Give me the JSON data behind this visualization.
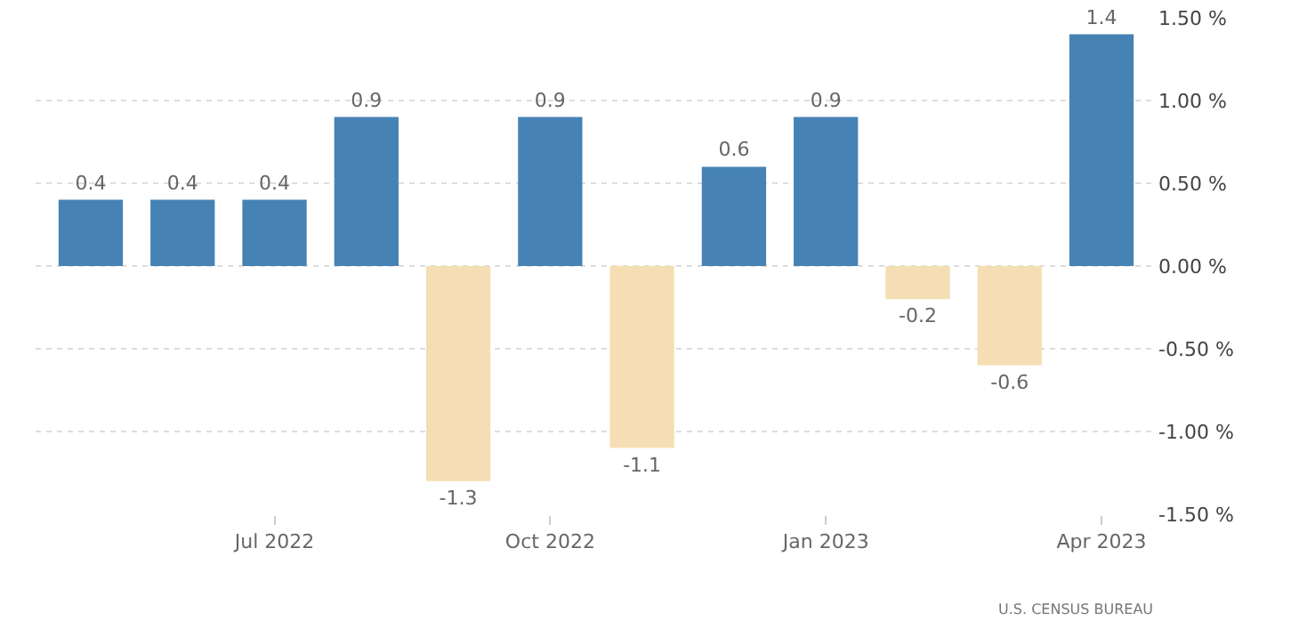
{
  "chart_data": {
    "type": "bar",
    "categories": [
      null,
      null,
      "Jul 2022",
      null,
      null,
      "Oct 2022",
      null,
      null,
      "Jan 2023",
      null,
      null,
      "Apr 2023"
    ],
    "values": [
      0.4,
      0.4,
      0.4,
      0.9,
      -1.3,
      0.9,
      -1.1,
      0.6,
      0.9,
      -0.2,
      -0.6,
      1.4
    ],
    "colors": [
      "#4682b4",
      "#4682b4",
      "#4682b4",
      "#4682b4",
      "#f5deb3",
      "#4682b4",
      "#f5deb3",
      "#4682b4",
      "#4682b4",
      "#f5deb3",
      "#f5deb3",
      "#4682b4"
    ],
    "data_labels": true,
    "ylim": [
      -1.5,
      1.5
    ],
    "yticks": [
      {
        "value": 1.5,
        "label": "1.50 %"
      },
      {
        "value": 1,
        "label": "1.00 %"
      },
      {
        "value": 0.5,
        "label": "0.50 %"
      },
      {
        "value": 0,
        "label": "0.00 %"
      },
      {
        "value": -0.5,
        "label": "-0.50 %"
      },
      {
        "value": -1,
        "label": "-1.00 %"
      },
      {
        "value": -1.5,
        "label": "-1.50 %"
      }
    ],
    "grid": "y",
    "annotations": [
      "U.S. CENSUS BUREAU"
    ]
  }
}
